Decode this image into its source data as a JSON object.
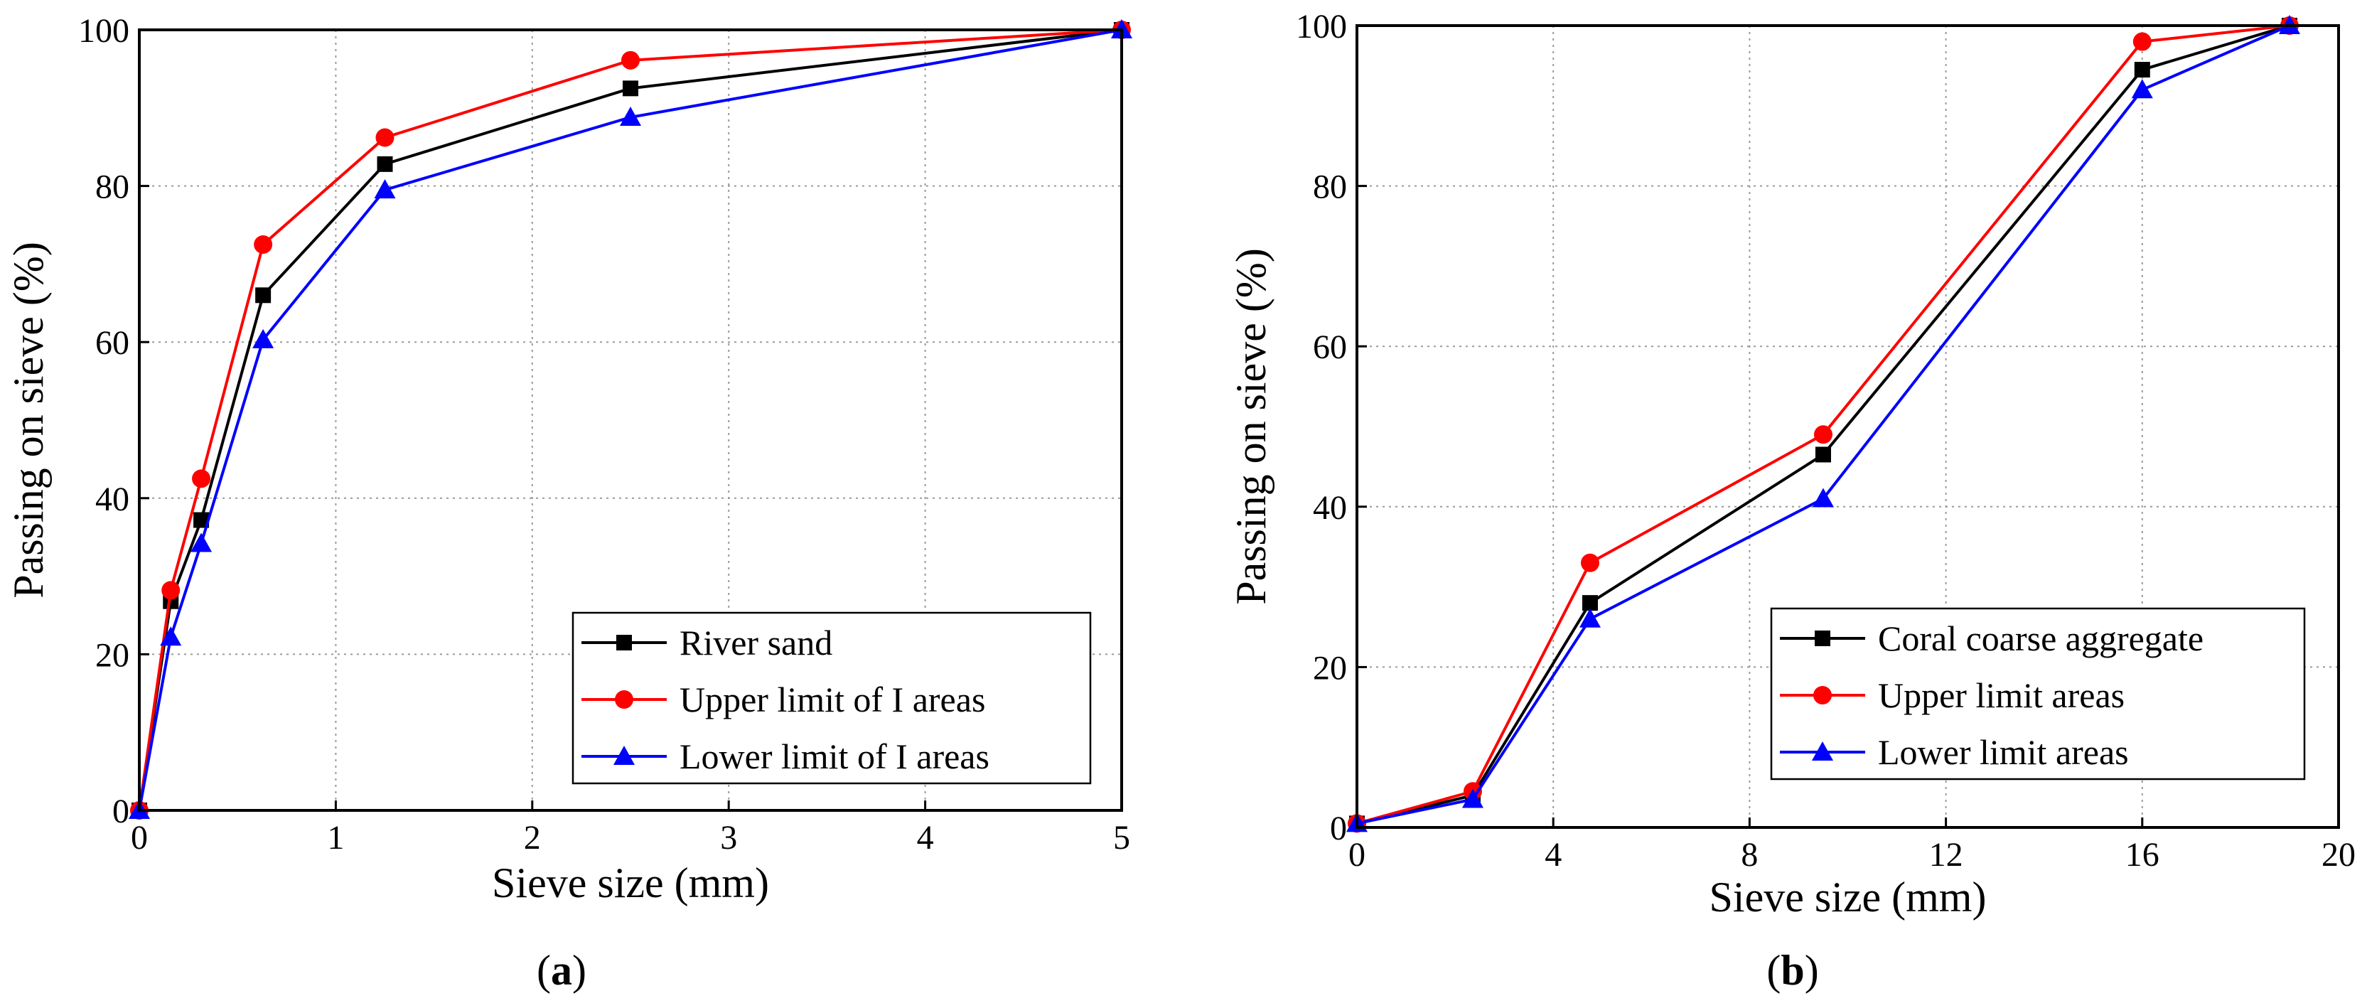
{
  "chart_data": [
    {
      "type": "line",
      "panel_label": "a",
      "xlabel": "Sieve size (mm)",
      "ylabel": "Passing on sieve (%)",
      "xlim": [
        0,
        5
      ],
      "ylim": [
        0,
        100
      ],
      "xticks": [
        0,
        1,
        2,
        3,
        4,
        5
      ],
      "yticks": [
        0,
        20,
        40,
        60,
        80,
        100
      ],
      "grid": true,
      "legend_position": "bottom-right",
      "series": [
        {
          "name": "River sand",
          "color": "#000000",
          "marker": "square",
          "x": [
            0,
            0.16,
            0.315,
            0.63,
            1.25,
            2.5,
            5
          ],
          "y": [
            0,
            26.8,
            37.2,
            66.0,
            82.8,
            92.5,
            100
          ]
        },
        {
          "name": "Upper limit of I areas",
          "color": "#ff0000",
          "marker": "circle",
          "x": [
            0,
            0.16,
            0.315,
            0.63,
            1.25,
            2.5,
            5
          ],
          "y": [
            0,
            28.2,
            42.5,
            72.5,
            86.2,
            96.1,
            100
          ]
        },
        {
          "name": "Lower limit of I areas",
          "color": "#0000ff",
          "marker": "triangle",
          "x": [
            0,
            0.16,
            0.315,
            0.63,
            1.25,
            2.5,
            5
          ],
          "y": [
            0,
            22.2,
            34.2,
            60.3,
            79.5,
            88.8,
            100
          ]
        }
      ]
    },
    {
      "type": "line",
      "panel_label": "b",
      "xlabel": "Sieve size (mm)",
      "ylabel": "Passing on sieve (%)",
      "xlim": [
        0,
        20
      ],
      "ylim": [
        0,
        100
      ],
      "xticks": [
        0,
        4,
        8,
        12,
        16,
        20
      ],
      "yticks": [
        0,
        20,
        40,
        60,
        80,
        100
      ],
      "grid": true,
      "legend_position": "bottom-right",
      "series": [
        {
          "name": "Coral coarse aggregate",
          "color": "#000000",
          "marker": "square",
          "x": [
            0,
            2.36,
            4.75,
            9.5,
            16,
            19
          ],
          "y": [
            0.5,
            4.0,
            28.0,
            46.5,
            94.5,
            100
          ]
        },
        {
          "name": "Upper limit areas",
          "color": "#ff0000",
          "marker": "circle",
          "x": [
            0,
            2.36,
            4.75,
            9.5,
            16,
            19
          ],
          "y": [
            0.5,
            4.5,
            33.0,
            49.0,
            98.0,
            100
          ]
        },
        {
          "name": "Lower limit areas",
          "color": "#0000ff",
          "marker": "triangle",
          "x": [
            0,
            2.36,
            4.75,
            9.5,
            16,
            19
          ],
          "y": [
            0.5,
            3.5,
            26.0,
            41.0,
            92.0,
            100
          ]
        }
      ]
    }
  ]
}
